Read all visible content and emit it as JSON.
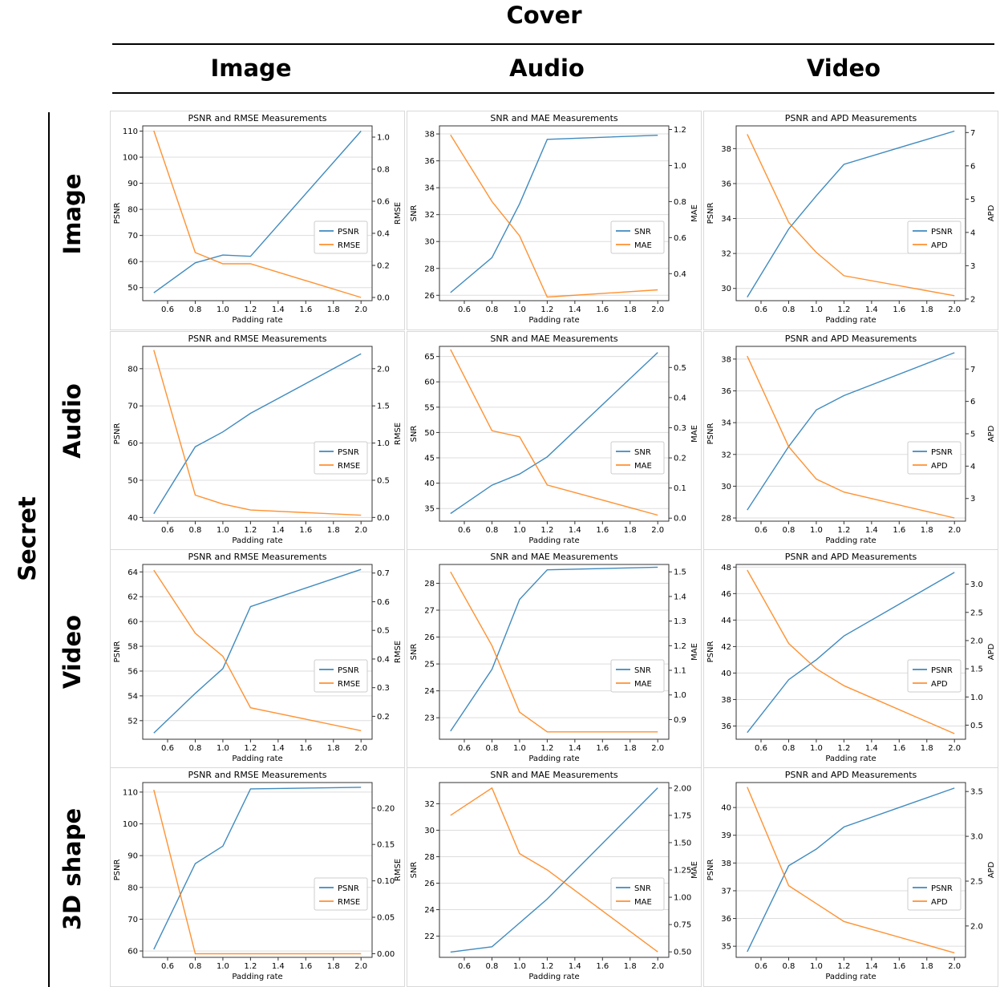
{
  "headers": {
    "cover": "Cover",
    "secret": "Secret",
    "columns": [
      "Image",
      "Audio",
      "Video"
    ],
    "rows": [
      "Image",
      "Audio",
      "Video",
      "3D shape"
    ]
  },
  "colors": {
    "left_series": "#1f77b4",
    "right_series": "#ff7f0e",
    "grid": "#dddddd"
  },
  "chart_data": [
    {
      "type": "line",
      "title": "PSNR and RMSE Measurements",
      "xlabel": "Padding rate",
      "ylabel": "PSNR",
      "y2label": "RMSE",
      "x": [
        0.5,
        0.8,
        1.0,
        1.2,
        2.0
      ],
      "xticks": [
        0.6,
        0.8,
        1.0,
        1.2,
        1.4,
        1.6,
        1.8,
        2.0
      ],
      "ylim": [
        45,
        112
      ],
      "yticks": [
        50,
        60,
        70,
        80,
        90,
        100,
        110
      ],
      "y2lim": [
        -0.02,
        1.07
      ],
      "y2ticks": [
        0.0,
        0.2,
        0.4,
        0.6,
        0.8,
        1.0
      ],
      "series": [
        {
          "name": "PSNR",
          "axis": "left",
          "values": [
            48,
            59.5,
            62.5,
            62,
            110
          ]
        },
        {
          "name": "RMSE",
          "axis": "right",
          "values": [
            1.04,
            0.28,
            0.21,
            0.21,
            0.0
          ]
        }
      ],
      "legend": "center-right"
    },
    {
      "type": "line",
      "title": "SNR and MAE Measurements",
      "xlabel": "Padding rate",
      "ylabel": "SNR",
      "y2label": "MAE",
      "x": [
        0.5,
        0.8,
        1.0,
        1.2,
        2.0
      ],
      "xticks": [
        0.6,
        0.8,
        1.0,
        1.2,
        1.4,
        1.6,
        1.8,
        2.0
      ],
      "ylim": [
        25.6,
        38.6
      ],
      "yticks": [
        26,
        28,
        30,
        32,
        34,
        36,
        38
      ],
      "y2lim": [
        0.25,
        1.22
      ],
      "y2ticks": [
        0.4,
        0.6,
        0.8,
        1.0,
        1.2
      ],
      "series": [
        {
          "name": "SNR",
          "axis": "left",
          "values": [
            26.2,
            28.8,
            32.8,
            37.6,
            37.9
          ]
        },
        {
          "name": "MAE",
          "axis": "right",
          "values": [
            1.17,
            0.8,
            0.61,
            0.27,
            0.31
          ]
        }
      ],
      "legend": "center-right"
    },
    {
      "type": "line",
      "title": "PSNR and APD Measurements",
      "xlabel": "Padding rate",
      "ylabel": "PSNR",
      "y2label": "APD",
      "x": [
        0.5,
        0.8,
        1.0,
        1.2,
        2.0
      ],
      "xticks": [
        0.6,
        0.8,
        1.0,
        1.2,
        1.4,
        1.6,
        1.8,
        2.0
      ],
      "ylim": [
        29.3,
        39.3
      ],
      "yticks": [
        30,
        32,
        34,
        36,
        38
      ],
      "y2lim": [
        1.95,
        7.2
      ],
      "y2ticks": [
        2,
        3,
        4,
        5,
        6,
        7
      ],
      "series": [
        {
          "name": "PSNR",
          "axis": "left",
          "values": [
            29.5,
            33.4,
            35.3,
            37.1,
            39
          ]
        },
        {
          "name": "APD",
          "axis": "right",
          "values": [
            6.95,
            4.3,
            3.4,
            2.7,
            2.1
          ]
        }
      ],
      "legend": "center-right"
    },
    {
      "type": "line",
      "title": "PSNR and RMSE Measurements",
      "xlabel": "Padding rate",
      "ylabel": "PSNR",
      "y2label": "RMSE",
      "x": [
        0.5,
        0.8,
        1.0,
        1.2,
        2.0
      ],
      "xticks": [
        0.6,
        0.8,
        1.0,
        1.2,
        1.4,
        1.6,
        1.8,
        2.0
      ],
      "ylim": [
        39,
        86
      ],
      "yticks": [
        40,
        50,
        60,
        70,
        80
      ],
      "y2lim": [
        -0.05,
        2.3
      ],
      "y2ticks": [
        0.0,
        0.5,
        1.0,
        1.5,
        2.0
      ],
      "series": [
        {
          "name": "PSNR",
          "axis": "left",
          "values": [
            41,
            59,
            63,
            68,
            84
          ]
        },
        {
          "name": "RMSE",
          "axis": "right",
          "values": [
            2.25,
            0.3,
            0.18,
            0.1,
            0.03
          ]
        }
      ],
      "legend": "center-right"
    },
    {
      "type": "line",
      "title": "SNR and MAE Measurements",
      "xlabel": "Padding rate",
      "ylabel": "SNR",
      "y2label": "MAE",
      "x": [
        0.5,
        0.8,
        1.0,
        1.2,
        2.0
      ],
      "xticks": [
        0.6,
        0.8,
        1.0,
        1.2,
        1.4,
        1.6,
        1.8,
        2.0
      ],
      "ylim": [
        32.5,
        67
      ],
      "yticks": [
        35,
        40,
        45,
        50,
        55,
        60,
        65
      ],
      "y2lim": [
        -0.01,
        0.57
      ],
      "y2ticks": [
        0.0,
        0.1,
        0.2,
        0.3,
        0.4,
        0.5
      ],
      "series": [
        {
          "name": "SNR",
          "axis": "left",
          "values": [
            34,
            39.6,
            41.8,
            45.2,
            65.8
          ]
        },
        {
          "name": "MAE",
          "axis": "right",
          "values": [
            0.56,
            0.29,
            0.27,
            0.11,
            0.01
          ]
        }
      ],
      "legend": "center-right"
    },
    {
      "type": "line",
      "title": "PSNR and APD Measurements",
      "xlabel": "Padding rate",
      "ylabel": "PSNR",
      "y2label": "APD",
      "x": [
        0.5,
        0.8,
        1.0,
        1.2,
        2.0
      ],
      "xticks": [
        0.6,
        0.8,
        1.0,
        1.2,
        1.4,
        1.6,
        1.8,
        2.0
      ],
      "ylim": [
        27.8,
        38.8
      ],
      "yticks": [
        28,
        30,
        32,
        34,
        36,
        38
      ],
      "y2lim": [
        2.3,
        7.7
      ],
      "y2ticks": [
        3,
        4,
        5,
        6,
        7
      ],
      "series": [
        {
          "name": "PSNR",
          "axis": "left",
          "values": [
            28.5,
            32.5,
            34.8,
            35.7,
            38.4
          ]
        },
        {
          "name": "APD",
          "axis": "right",
          "values": [
            7.4,
            4.6,
            3.6,
            3.2,
            2.4
          ]
        }
      ],
      "legend": "center-right"
    },
    {
      "type": "line",
      "title": "PSNR and RMSE Measurements",
      "xlabel": "Padding rate",
      "ylabel": "PSNR",
      "y2label": "RMSE",
      "x": [
        0.5,
        0.8,
        1.0,
        1.2,
        2.0
      ],
      "xticks": [
        0.6,
        0.8,
        1.0,
        1.2,
        1.4,
        1.6,
        1.8,
        2.0
      ],
      "ylim": [
        50.5,
        64.6
      ],
      "yticks": [
        52,
        54,
        56,
        58,
        60,
        62,
        64
      ],
      "y2lim": [
        0.12,
        0.73
      ],
      "y2ticks": [
        0.2,
        0.3,
        0.4,
        0.5,
        0.6,
        0.7
      ],
      "series": [
        {
          "name": "PSNR",
          "axis": "left",
          "values": [
            51,
            54.2,
            56.2,
            61.2,
            64.2
          ]
        },
        {
          "name": "RMSE",
          "axis": "right",
          "values": [
            0.71,
            0.49,
            0.41,
            0.23,
            0.15
          ]
        }
      ],
      "legend": "center-right"
    },
    {
      "type": "line",
      "title": "SNR and MAE Measurements",
      "xlabel": "Padding rate",
      "ylabel": "SNR",
      "y2label": "MAE",
      "x": [
        0.5,
        0.8,
        1.0,
        1.2,
        2.0
      ],
      "xticks": [
        0.6,
        0.8,
        1.0,
        1.2,
        1.4,
        1.6,
        1.8,
        2.0
      ],
      "ylim": [
        22.2,
        28.7
      ],
      "yticks": [
        23,
        24,
        25,
        26,
        27,
        28
      ],
      "y2lim": [
        0.82,
        1.53
      ],
      "y2ticks": [
        0.9,
        1.0,
        1.1,
        1.2,
        1.3,
        1.4,
        1.5
      ],
      "series": [
        {
          "name": "SNR",
          "axis": "left",
          "values": [
            22.5,
            24.8,
            27.4,
            28.5,
            28.6
          ]
        },
        {
          "name": "MAE",
          "axis": "right",
          "values": [
            1.5,
            1.2,
            0.93,
            0.85,
            0.85
          ]
        }
      ],
      "legend": "center-right"
    },
    {
      "type": "line",
      "title": "PSNR and APD Measurements",
      "xlabel": "Padding rate",
      "ylabel": "PSNR",
      "y2label": "APD",
      "x": [
        0.5,
        0.8,
        1.0,
        1.2,
        2.0
      ],
      "xticks": [
        0.6,
        0.8,
        1.0,
        1.2,
        1.4,
        1.6,
        1.8,
        2.0
      ],
      "ylim": [
        35,
        48.2
      ],
      "yticks": [
        36,
        38,
        40,
        42,
        44,
        46,
        48
      ],
      "y2lim": [
        0.25,
        3.35
      ],
      "y2ticks": [
        0.5,
        1.0,
        1.5,
        2.0,
        2.5,
        3.0
      ],
      "series": [
        {
          "name": "PSNR",
          "axis": "left",
          "values": [
            35.5,
            39.5,
            41,
            42.8,
            47.6
          ]
        },
        {
          "name": "APD",
          "axis": "right",
          "values": [
            3.25,
            1.95,
            1.5,
            1.2,
            0.35
          ]
        }
      ],
      "legend": "center-right"
    },
    {
      "type": "line",
      "title": "PSNR and RMSE Measurements",
      "xlabel": "Padding rate",
      "ylabel": "PSNR",
      "y2label": "RMSE",
      "x": [
        0.5,
        0.8,
        1.0,
        1.2,
        2.0
      ],
      "xticks": [
        0.6,
        0.8,
        1.0,
        1.2,
        1.4,
        1.6,
        1.8,
        2.0
      ],
      "ylim": [
        58,
        113
      ],
      "yticks": [
        60,
        70,
        80,
        90,
        100,
        110
      ],
      "y2lim": [
        -0.005,
        0.235
      ],
      "y2ticks": [
        0.0,
        0.05,
        0.1,
        0.15,
        0.2
      ],
      "series": [
        {
          "name": "PSNR",
          "axis": "left",
          "values": [
            60.5,
            87.5,
            93,
            111,
            111.5
          ]
        },
        {
          "name": "RMSE",
          "axis": "right",
          "values": [
            0.225,
            0.0,
            0.0,
            0.0,
            0.0
          ]
        }
      ],
      "legend": "center-right"
    },
    {
      "type": "line",
      "title": "SNR and MAE Measurements",
      "xlabel": "Padding rate",
      "ylabel": "SNR",
      "y2label": "MAE",
      "x": [
        0.5,
        0.8,
        1.0,
        1.2,
        2.0
      ],
      "xticks": [
        0.6,
        0.8,
        1.0,
        1.2,
        1.4,
        1.6,
        1.8,
        2.0
      ],
      "ylim": [
        20.4,
        33.6
      ],
      "yticks": [
        22,
        24,
        26,
        28,
        30,
        32
      ],
      "y2lim": [
        0.45,
        2.05
      ],
      "y2ticks": [
        0.5,
        0.75,
        1.0,
        1.25,
        1.5,
        1.75,
        2.0
      ],
      "series": [
        {
          "name": "SNR",
          "axis": "left",
          "values": [
            20.8,
            21.2,
            23,
            24.8,
            33.2
          ]
        },
        {
          "name": "MAE",
          "axis": "right",
          "values": [
            1.75,
            2.0,
            1.4,
            1.25,
            0.5
          ]
        }
      ],
      "legend": "center-right"
    },
    {
      "type": "line",
      "title": "PSNR and APD Measurements",
      "xlabel": "Padding rate",
      "ylabel": "PSNR",
      "y2label": "APD",
      "x": [
        0.5,
        0.8,
        1.0,
        1.2,
        2.0
      ],
      "xticks": [
        0.6,
        0.8,
        1.0,
        1.2,
        1.4,
        1.6,
        1.8,
        2.0
      ],
      "ylim": [
        34.6,
        40.9
      ],
      "yticks": [
        35,
        36,
        37,
        38,
        39,
        40
      ],
      "y2lim": [
        1.65,
        3.6
      ],
      "y2ticks": [
        2.0,
        2.5,
        3.0,
        3.5
      ],
      "series": [
        {
          "name": "PSNR",
          "axis": "left",
          "values": [
            34.8,
            37.9,
            38.5,
            39.3,
            40.7
          ]
        },
        {
          "name": "APD",
          "axis": "right",
          "values": [
            3.55,
            2.45,
            2.25,
            2.05,
            1.7
          ]
        }
      ],
      "legend": "center-right"
    }
  ]
}
